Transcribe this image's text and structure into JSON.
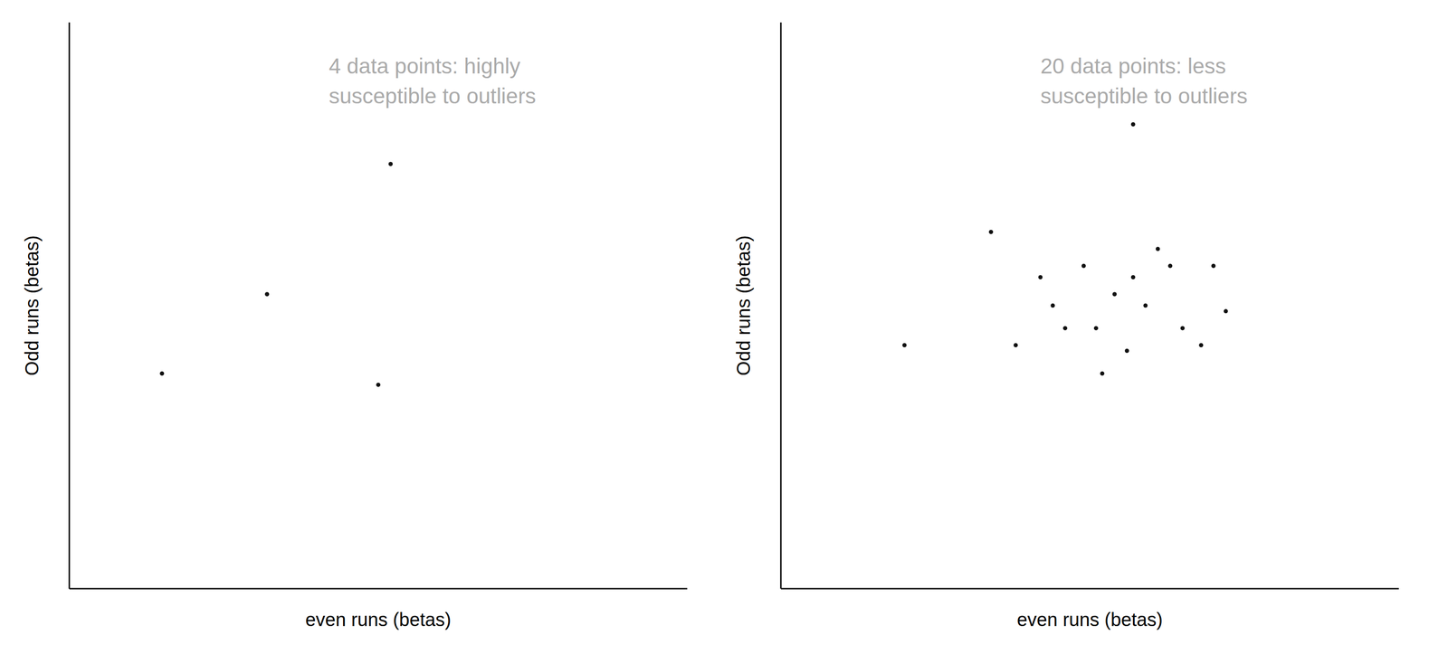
{
  "chart_data": [
    {
      "type": "scatter",
      "x": [
        0.15,
        0.32,
        0.5,
        0.52
      ],
      "values": [
        0.38,
        0.52,
        0.36,
        0.75
      ],
      "xlabel": "even runs (betas)",
      "ylabel": "Odd runs (betas)",
      "annotation": "4 data points: highly\nsusceptible to outliers",
      "xlim": [
        0,
        1
      ],
      "ylim": [
        0,
        1
      ],
      "tick_labels": false,
      "grid": false,
      "color": "#111111"
    },
    {
      "type": "scatter",
      "x": [
        0.2,
        0.34,
        0.38,
        0.42,
        0.44,
        0.46,
        0.49,
        0.51,
        0.52,
        0.54,
        0.56,
        0.57,
        0.59,
        0.61,
        0.63,
        0.65,
        0.68,
        0.7,
        0.72,
        0.57
      ],
      "values": [
        0.43,
        0.63,
        0.43,
        0.55,
        0.5,
        0.46,
        0.57,
        0.46,
        0.38,
        0.52,
        0.42,
        0.55,
        0.5,
        0.6,
        0.57,
        0.46,
        0.43,
        0.57,
        0.49,
        0.82
      ],
      "xlabel": "even runs (betas)",
      "ylabel": "Odd runs (betas)",
      "annotation": "20 data points: less\nsusceptible to outliers",
      "xlim": [
        0,
        1
      ],
      "ylim": [
        0,
        1
      ],
      "tick_labels": false,
      "grid": false,
      "color": "#111111"
    }
  ]
}
